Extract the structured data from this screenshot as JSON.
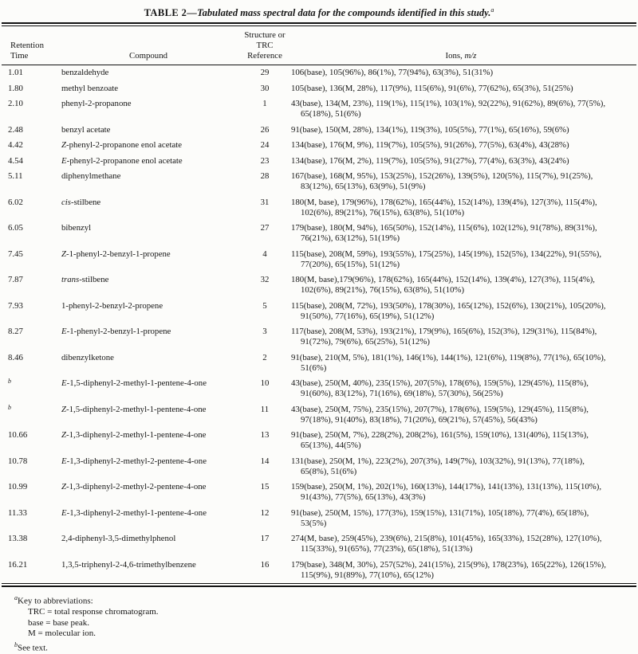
{
  "title": {
    "table_label": "TABLE 2",
    "separator": "—",
    "caption": "Tabulated mass spectral data for the compounds identified in this study.",
    "footnote_mark": "a"
  },
  "header": {
    "col_retention_line1": "Retention",
    "col_retention_line2": "Time",
    "col_compound": "Compound",
    "col_structure_line1": "Structure or",
    "col_structure_line2": "TRC Reference",
    "col_ions_prefix": "Ions, ",
    "col_ions_italic": "m/z"
  },
  "rows": [
    {
      "rt": "1.01",
      "rt_sup": false,
      "compound_italic": "",
      "compound": "benzaldehyde",
      "ref": "29",
      "ions": [
        "106(base), 105(96%), 86(1%), 77(94%), 63(3%), 51(31%)"
      ]
    },
    {
      "rt": "1.80",
      "rt_sup": false,
      "compound_italic": "",
      "compound": "methyl benzoate",
      "ref": "30",
      "ions": [
        "105(base), 136(M, 28%), 117(9%), 115(6%), 91(6%), 77(62%), 65(3%), 51(25%)"
      ]
    },
    {
      "rt": "2.10",
      "rt_sup": false,
      "compound_italic": "",
      "compound": "phenyl-2-propanone",
      "ref": "1",
      "ions": [
        "43(base), 134(M, 23%), 119(1%), 115(1%), 103(1%), 92(22%), 91(62%), 89(6%), 77(5%),",
        "65(18%), 51(6%)"
      ]
    },
    {
      "rt": "2.48",
      "rt_sup": false,
      "compound_italic": "",
      "compound": "benzyl acetate",
      "ref": "26",
      "ions": [
        "91(base), 150(M, 28%), 134(1%), 119(3%), 105(5%), 77(1%), 65(16%), 59(6%)"
      ]
    },
    {
      "rt": "4.42",
      "rt_sup": false,
      "compound_italic": "Z",
      "compound": "-phenyl-2-propanone enol acetate",
      "ref": "24",
      "ions": [
        "134(base), 176(M, 9%), 119(7%), 105(5%), 91(26%), 77(5%), 63(4%), 43(28%)"
      ]
    },
    {
      "rt": "4.54",
      "rt_sup": false,
      "compound_italic": "E",
      "compound": "-phenyl-2-propanone enol acetate",
      "ref": "23",
      "ions": [
        "134(base), 176(M, 2%), 119(7%), 105(5%), 91(27%), 77(4%), 63(3%), 43(24%)"
      ]
    },
    {
      "rt": "5.11",
      "rt_sup": false,
      "compound_italic": "",
      "compound": "diphenylmethane",
      "ref": "28",
      "ions": [
        "167(base), 168(M, 95%), 153(25%), 152(26%), 139(5%), 120(5%), 115(7%), 91(25%),",
        "83(12%), 65(13%), 63(9%), 51(9%)"
      ]
    },
    {
      "rt": "6.02",
      "rt_sup": false,
      "compound_italic": "cis",
      "compound": "-stilbene",
      "ref": "31",
      "ions": [
        "180(M, base), 179(96%), 178(62%), 165(44%), 152(14%), 139(4%), 127(3%), 115(4%),",
        "102(6%), 89(21%), 76(15%), 63(8%), 51(10%)"
      ]
    },
    {
      "rt": "6.05",
      "rt_sup": false,
      "compound_italic": "",
      "compound": "bibenzyl",
      "ref": "27",
      "ions": [
        "179(base), 180(M, 94%), 165(50%), 152(14%), 115(6%), 102(12%), 91(78%), 89(31%),",
        "76(21%), 63(12%), 51(19%)"
      ]
    },
    {
      "rt": "7.45",
      "rt_sup": false,
      "compound_italic": "Z",
      "compound": "-1-phenyl-2-benzyl-1-propene",
      "ref": "4",
      "ions": [
        "115(base), 208(M, 59%), 193(55%), 175(25%), 145(19%), 152(5%), 134(22%), 91(55%),",
        "77(20%), 65(15%), 51(12%)"
      ]
    },
    {
      "rt": "7.87",
      "rt_sup": false,
      "compound_italic": "trans",
      "compound": "-stilbene",
      "ref": "32",
      "ions": [
        "180(M, base),179(96%), 178(62%), 165(44%), 152(14%), 139(4%), 127(3%), 115(4%),",
        "102(6%), 89(21%), 76(15%), 63(8%), 51(10%)"
      ]
    },
    {
      "rt": "7.93",
      "rt_sup": false,
      "compound_italic": "",
      "compound": "1-phenyl-2-benzyl-2-propene",
      "ref": "5",
      "ions": [
        "115(base), 208(M, 72%), 193(50%), 178(30%), 165(12%), 152(6%), 130(21%), 105(20%),",
        "91(50%), 77(16%), 65(19%), 51(12%)"
      ]
    },
    {
      "rt": "8.27",
      "rt_sup": false,
      "compound_italic": "E",
      "compound": "-1-phenyl-2-benzyl-1-propene",
      "ref": "3",
      "ions": [
        "117(base), 208(M, 53%), 193(21%), 179(9%), 165(6%), 152(3%), 129(31%), 115(84%),",
        "91(72%), 79(6%), 65(25%), 51(12%)"
      ]
    },
    {
      "rt": "8.46",
      "rt_sup": false,
      "compound_italic": "",
      "compound": "dibenzylketone",
      "ref": "2",
      "ions": [
        "91(base), 210(M, 5%), 181(1%), 146(1%), 144(1%), 121(6%), 119(8%), 77(1%), 65(10%),",
        "51(6%)"
      ]
    },
    {
      "rt": "b",
      "rt_sup": true,
      "compound_italic": "E",
      "compound": "-1,5-diphenyl-2-methyl-1-pentene-4-one",
      "ref": "10",
      "ions": [
        "43(base), 250(M, 40%), 235(15%), 207(5%), 178(6%), 159(5%), 129(45%), 115(8%),",
        "91(60%), 83(12%), 71(16%), 69(18%), 57(30%), 56(25%)"
      ]
    },
    {
      "rt": "b",
      "rt_sup": true,
      "compound_italic": "Z",
      "compound": "-1,5-diphenyl-2-methyl-1-pentene-4-one",
      "ref": "11",
      "ions": [
        "43(base), 250(M, 75%), 235(15%), 207(7%), 178(6%), 159(5%), 129(45%), 115(8%),",
        "97(18%), 91(40%), 83(18%), 71(20%), 69(21%), 57(45%), 56(43%)"
      ]
    },
    {
      "rt": "10.66",
      "rt_sup": false,
      "compound_italic": "Z",
      "compound": "-1,3-diphenyl-2-methyl-1-pentene-4-one",
      "ref": "13",
      "ions": [
        "91(base), 250(M, 7%), 228(2%), 208(2%), 161(5%), 159(10%), 131(40%), 115(13%),",
        "65(13%), 44(5%)"
      ]
    },
    {
      "rt": "10.78",
      "rt_sup": false,
      "compound_italic": "E",
      "compound": "-1,3-diphenyl-2-methyl-2-pentene-4-one",
      "ref": "14",
      "ions": [
        "131(base), 250(M, 1%), 223(2%), 207(3%), 149(7%), 103(32%), 91(13%), 77(18%),",
        "65(8%), 51(6%)"
      ]
    },
    {
      "rt": "10.99",
      "rt_sup": false,
      "compound_italic": "Z",
      "compound": "-1,3-diphenyl-2-methyl-2-pentene-4-one",
      "ref": "15",
      "ions": [
        "159(base), 250(M, 1%), 202(1%), 160(13%), 144(17%), 141(13%), 131(13%), 115(10%),",
        "91(43%), 77(5%), 65(13%), 43(3%)"
      ]
    },
    {
      "rt": "11.33",
      "rt_sup": false,
      "compound_italic": "E",
      "compound": "-1,3-diphenyl-2-methyl-1-pentene-4-one",
      "ref": "12",
      "ions": [
        "91(base), 250(M, 15%), 177(3%), 159(15%), 131(71%), 105(18%), 77(4%), 65(18%),",
        "53(5%)"
      ]
    },
    {
      "rt": "13.38",
      "rt_sup": false,
      "compound_italic": "",
      "compound": "2,4-diphenyl-3,5-dimethylphenol",
      "ref": "17",
      "ions": [
        "274(M, base), 259(45%), 239(6%), 215(8%), 101(45%), 165(33%), 152(28%), 127(10%),",
        "115(33%), 91(65%), 77(23%), 65(18%), 51(13%)"
      ]
    },
    {
      "rt": "16.21",
      "rt_sup": false,
      "compound_italic": "",
      "compound": "1,3,5-triphenyl-2-4,6-trimethylbenzene",
      "ref": "16",
      "ions": [
        "179(base), 348(M, 30%), 257(52%), 241(15%), 215(9%), 178(23%), 165(22%), 126(15%),",
        "115(9%), 91(89%), 77(10%), 65(12%)"
      ]
    }
  ],
  "footnotes": [
    {
      "sup": "a",
      "text": "Key to abbreviations:",
      "indent": false
    },
    {
      "sup": "",
      "text": "TRC = total response chromatogram.",
      "indent": true
    },
    {
      "sup": "",
      "text": "base = base peak.",
      "indent": true
    },
    {
      "sup": "",
      "text": "M = molecular ion.",
      "indent": true
    },
    {
      "sup": "b",
      "text": "See text.",
      "indent": false
    }
  ],
  "colors": {
    "background": "#fcfcfa",
    "text": "#161616",
    "rule": "#121212"
  }
}
